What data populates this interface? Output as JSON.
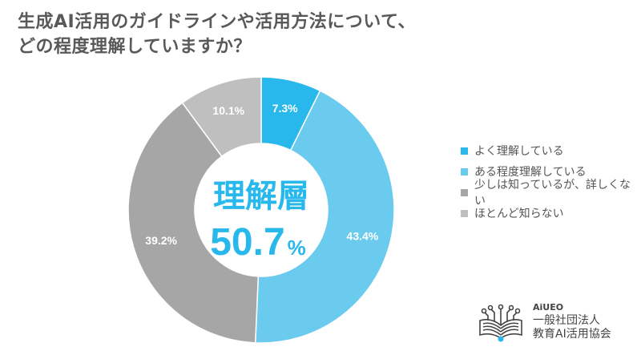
{
  "title": {
    "line1": "生成AI活用のガイドラインや活用方法について、",
    "line2": "どの程度理解していますか？"
  },
  "center_label": {
    "label": "理解層",
    "value": "50.7",
    "unit": "%"
  },
  "legend": [
    {
      "label": "よく理解している",
      "color": "#29b8eb"
    },
    {
      "label": "ある程度理解している",
      "color": "#6bcbef"
    },
    {
      "label": "少しは知っているが、詳しくない",
      "color": "#a6a6a6"
    },
    {
      "label": "ほとんど知らない",
      "color": "#bfbfbf"
    }
  ],
  "logo": {
    "brand": "AiUEO",
    "line1": "一般社団法人",
    "line2": "教育AI活用協会"
  },
  "chart_data": {
    "type": "pie",
    "subtype": "donut",
    "title": "生成AI活用のガイドラインや活用方法について、どの程度理解していますか？",
    "categories": [
      "よく理解している",
      "ある程度理解している",
      "少しは知っているが、詳しくない",
      "ほとんど知らない"
    ],
    "values": [
      7.3,
      43.4,
      39.2,
      10.1
    ],
    "labels": [
      "7.3%",
      "43.4%",
      "39.2%",
      "10.1%"
    ],
    "colors": [
      "#29b8eb",
      "#6bcbef",
      "#a6a6a6",
      "#bfbfbf"
    ],
    "center_annotation": "理解層 50.7%",
    "legend_position": "right"
  }
}
